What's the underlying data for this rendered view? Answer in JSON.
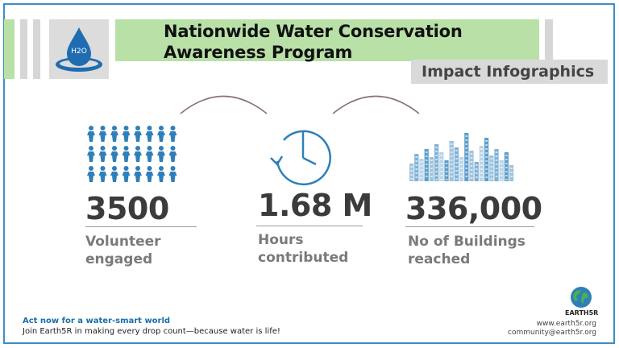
{
  "header": {
    "title": "Nationwide Water Conservation\nAwareness Program",
    "subtitle": "Impact Infographics",
    "logo_text": "H2O"
  },
  "stats": [
    {
      "value": "3500",
      "label": "Volunteer\nengaged",
      "icon": "people-icon"
    },
    {
      "value": "1.68 M",
      "label": "Hours\ncontributed",
      "icon": "clock-icon"
    },
    {
      "value": "336,000",
      "label": "No of Buildings\nreached",
      "icon": "buildings-icon"
    }
  ],
  "footer": {
    "cta_heading": "Act now for a water-smart world",
    "cta_text": "Join Earth5R  in making every drop count—because water is life!",
    "org_name": "EARTH5R",
    "website": "www.earth5r.org",
    "email": "community@earth5r.org"
  },
  "colors": {
    "title_band": "#b9e0a7",
    "accent_blue": "#2f7fb8",
    "building_blue": "#9ec3dd",
    "text_dark": "#3b3b3b",
    "text_gray": "#7a7a7a"
  }
}
